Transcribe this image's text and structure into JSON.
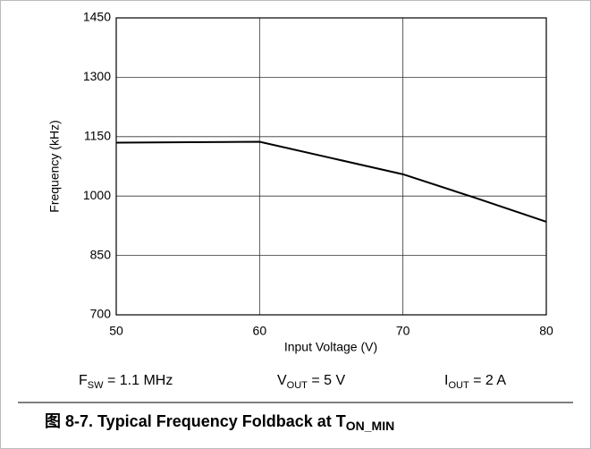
{
  "chart_data": {
    "type": "line",
    "xlabel": "Input Voltage (V)",
    "ylabel": "Frequency (kHz)",
    "x": [
      50,
      55,
      60,
      65,
      70,
      75,
      80
    ],
    "series": [
      {
        "color": "#000000",
        "values": [
          1135,
          1136,
          1137,
          1096,
          1055,
          996,
          935
        ]
      }
    ],
    "xlim": [
      50,
      80
    ],
    "xticks": [
      50,
      60,
      70,
      80
    ],
    "ylim": [
      700,
      1450
    ],
    "yticks": [
      700,
      850,
      1000,
      1150,
      1300,
      1450
    ],
    "grid": true,
    "annotations": [
      {
        "main": "F",
        "sub": "SW",
        "rest": " = 1.1 MHz"
      },
      {
        "main": "V",
        "sub": "OUT",
        "rest": " = 5 V"
      },
      {
        "main": "I",
        "sub": "OUT",
        "rest": " = 2 A"
      }
    ],
    "caption": {
      "main": "图 8-7. Typical Frequency Foldback at T",
      "sub": "ON_MIN"
    }
  }
}
